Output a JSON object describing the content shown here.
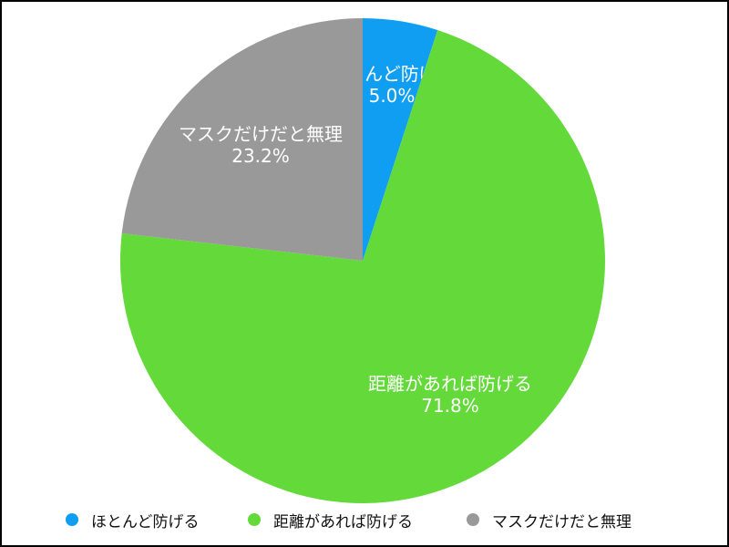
{
  "chart_data": {
    "type": "pie",
    "title": "",
    "categories": [
      "ほとんど防げる",
      "距離があれば防げる",
      "マスクだけだと無理"
    ],
    "values": [
      5.0,
      71.8,
      23.2
    ],
    "value_labels": [
      "5.0%",
      "71.8%",
      "23.2%"
    ],
    "colors": [
      "#0f9ef2",
      "#64d93a",
      "#999999"
    ],
    "start_angle": "12 o'clock",
    "direction": "clockwise",
    "legend_position": "bottom"
  }
}
